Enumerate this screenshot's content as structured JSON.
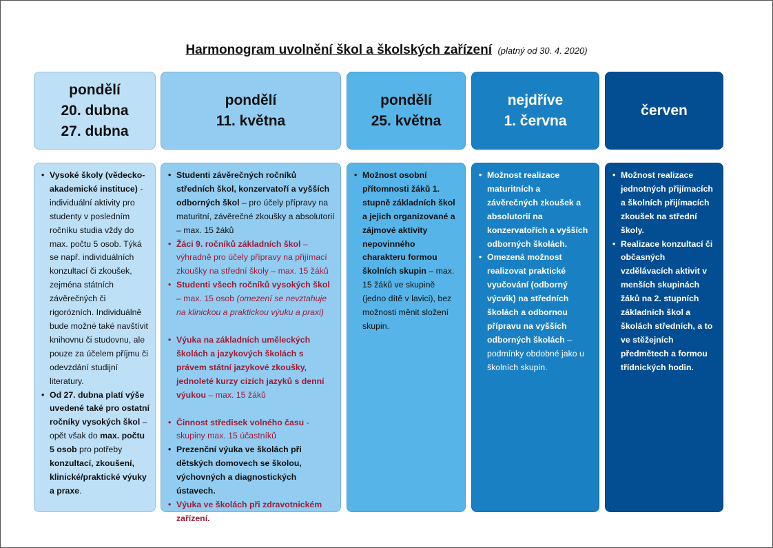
{
  "title": {
    "main": "Harmonogram uvolnění škol a školských zařízení",
    "sub": "(platný od 30. 4. 2020)"
  },
  "colors": {
    "col1": "#bde0f7",
    "col2": "#92cdf1",
    "col3": "#56b4e8",
    "col4": "#1a80c4",
    "col5": "#034e92",
    "accent_red": "#9e1c35"
  },
  "columns": [
    {
      "header": [
        "pondělí",
        "20. dubna",
        "27. dubna"
      ],
      "items": [
        [
          {
            "t": "Vysoké školy (vědecko-akademické instituce)",
            "s": "b"
          },
          {
            "t": " - individuální aktivity pro studenty v posledním ročníku studia vždy do max. počtu 5 osob. Týká se např. individuálních konzultací či zkoušek, zejména státních závěrečných či rigorózních. Individuálně bude možné také navštívit knihovnu či studovnu, ale pouze za účelem příjmu či odevzdání studijní literatury.",
            "s": "n"
          }
        ],
        [
          {
            "t": "Od 27. dubna platí výše uvedené také pro ostatní ročníky vysokých škol",
            "s": "b"
          },
          {
            "t": " – opět však do ",
            "s": "n"
          },
          {
            "t": "max. počtu 5 osob",
            "s": "b"
          },
          {
            "t": " pro potřeby ",
            "s": "n"
          },
          {
            "t": "konzultací, zkoušení, klinické/praktické výuky a praxe",
            "s": "b"
          },
          {
            "t": ".",
            "s": "n"
          }
        ]
      ]
    },
    {
      "header": [
        "pondělí",
        "11. května"
      ],
      "items": [
        [
          {
            "t": "Studenti závěrečných ročníků středních škol, konzervatoří a vyšších odborných škol",
            "s": "b"
          },
          {
            "t": " – pro účely přípravy na maturitní, závěrečné zkoušky a absolutorií – max. 15 žáků",
            "s": "n"
          }
        ],
        [
          {
            "t": "Žáci 9. ročníků základních škol",
            "s": "b",
            "red": true
          },
          {
            "t": " – výhradně pro účely přípravy na přijímací zkoušky na střední školy – max. 15 žáků",
            "s": "n",
            "red": true
          }
        ],
        [
          {
            "t": "Studenti všech ročníků vysokých škol",
            "s": "b",
            "red": true
          },
          {
            "t": " – max. 15 osob ",
            "s": "n",
            "red": true
          },
          {
            "t": "(omezení se nevztahuje na klinickou a praktickou výuku a praxi)",
            "s": "i",
            "red": true
          }
        ],
        [
          {
            "t": "Výuka na základních uměleckých školách a jazykových školách s právem státní jazykové zkoušky, jednoleté kurzy cizích jazyků s denní výukou",
            "s": "b",
            "red": true
          },
          {
            "t": " – max. 15 žáků",
            "s": "n",
            "red": true
          }
        ],
        [
          {
            "t": "Činnost středisek volného času",
            "s": "b",
            "red": true
          },
          {
            "t": " - skupiny max. 15 účastníků",
            "s": "n",
            "red": true
          }
        ],
        [
          {
            "t": "Prezenční výuka ve školách při dětských domovech se školou, výchovných a diagnostických ústavech.",
            "s": "b"
          }
        ],
        [
          {
            "t": "Výuka ve školách při zdravotnickém zařízení.",
            "s": "b",
            "red": true
          }
        ]
      ]
    },
    {
      "header": [
        "pondělí",
        "25. května"
      ],
      "items": [
        [
          {
            "t": "Možnost osobní přítomnosti žáků 1. stupně základních škol a jejich organizované a zájmové aktivity nepovinného charakteru formou školních skupin",
            "s": "b"
          },
          {
            "t": " – max. 15 žáků ve skupině (jedno dítě v lavici), bez možnosti měnit složení skupin.",
            "s": "n"
          }
        ]
      ]
    },
    {
      "header": [
        "nejdříve",
        "1. června"
      ],
      "items": [
        [
          {
            "t": "Možnost realizace maturitních a závěrečných zkoušek a absolutorií na konzervatořích a vyšších odborných školách.",
            "s": "b"
          }
        ],
        [
          {
            "t": "Omezená možnost realizovat praktické vyučování (odborný výcvik) na středních školách a odbornou přípravu na vyšších odborných školách",
            "s": "b"
          },
          {
            "t": " – podmínky obdobné jako u školních skupin.",
            "s": "n"
          }
        ]
      ]
    },
    {
      "header": [
        "červen"
      ],
      "items": [
        [
          {
            "t": "Možnost realizace jednotných přijímacích a školních přijímacích zkoušek na střední školy.",
            "s": "b"
          }
        ],
        [
          {
            "t": "Realizace konzultací či občasných vzdělávacích aktivit v menších skupinách žáků na 2. stupních základních škol a školách středních, a to ve stěžejních předmětech a formou třídnických hodin.",
            "s": "b"
          }
        ]
      ]
    }
  ]
}
